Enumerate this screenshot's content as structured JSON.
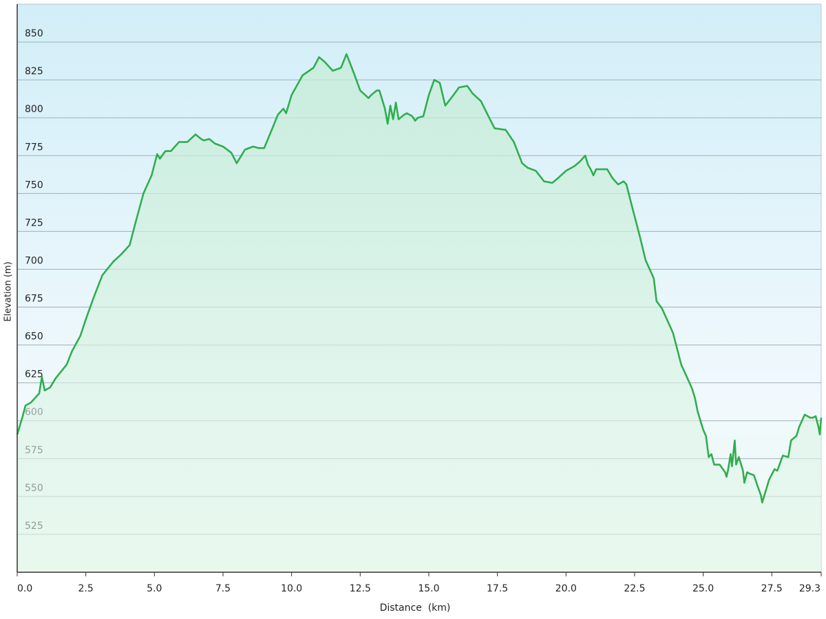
{
  "chart_data": {
    "type": "area-line",
    "x_label": "Distance  (km)",
    "y_label": "Elevation (m)",
    "color": "#2fae4e",
    "xlim": [
      0,
      29.3
    ],
    "ylim": [
      500,
      875
    ],
    "xticks": [
      {
        "value": 0,
        "label": "0.0"
      },
      2.5,
      {
        "value": 5,
        "label": "5.0"
      },
      7.5,
      {
        "value": 10,
        "label": "10.0"
      },
      12.5,
      {
        "value": 15,
        "label": "15.0"
      },
      17.5,
      {
        "value": 20,
        "label": "20.0"
      },
      22.5,
      {
        "value": 25,
        "label": "25.0"
      },
      27.5,
      29.3
    ],
    "yticks": [
      525,
      550,
      575,
      600,
      625,
      650,
      675,
      700,
      725,
      750,
      775,
      800,
      825,
      850
    ],
    "grid": true,
    "x": [
      0,
      0.2,
      0.3,
      0.5,
      0.8,
      0.9,
      1.0,
      1.2,
      1.4,
      1.8,
      2.0,
      2.3,
      2.5,
      2.8,
      3.1,
      3.5,
      3.8,
      4.1,
      4.3,
      4.6,
      4.9,
      5.1,
      5.2,
      5.4,
      5.6,
      5.9,
      6.2,
      6.5,
      6.7,
      6.8,
      7.0,
      7.2,
      7.5,
      7.8,
      8.0,
      8.3,
      8.6,
      8.8,
      9.0,
      9.3,
      9.5,
      9.7,
      9.8,
      10.0,
      10.4,
      10.8,
      11.0,
      11.2,
      11.5,
      11.8,
      12.0,
      12.3,
      12.5,
      12.8,
      12.9,
      13.1,
      13.2,
      13.4,
      13.5,
      13.6,
      13.7,
      13.8,
      13.9,
      14.1,
      14.2,
      14.4,
      14.5,
      14.6,
      14.8,
      15.0,
      15.2,
      15.4,
      15.6,
      15.9,
      16.1,
      16.4,
      16.6,
      16.9,
      17.2,
      17.4,
      17.8,
      18.1,
      18.4,
      18.6,
      18.9,
      19.2,
      19.5,
      19.7,
      20.0,
      20.3,
      20.5,
      20.7,
      20.8,
      20.9,
      21.0,
      21.1,
      21.5,
      21.7,
      21.9,
      22.1,
      22.2,
      22.4,
      22.7,
      22.9,
      23.2,
      23.3,
      23.5,
      23.9,
      24.2,
      24.5,
      24.6,
      24.7,
      24.8,
      25.0,
      25.1,
      25.2,
      25.3,
      25.4,
      25.6,
      25.8,
      25.85,
      25.9,
      26.0,
      26.05,
      26.15,
      26.2,
      26.3,
      26.45,
      26.5,
      26.6,
      26.7,
      26.85,
      27.0,
      27.1,
      27.15,
      27.3,
      27.4,
      27.6,
      27.7,
      27.9,
      28.1,
      28.2,
      28.4,
      28.5,
      28.7,
      28.9,
      29.0,
      29.1,
      29.2,
      29.25,
      29.3
    ],
    "values": [
      591,
      603,
      610,
      612,
      618,
      629,
      620,
      622,
      628,
      637,
      646,
      656,
      667,
      682,
      696,
      705,
      710,
      716,
      730,
      750,
      762,
      776,
      773,
      778,
      778,
      784,
      784,
      789,
      786,
      785,
      786,
      783,
      781,
      777,
      770,
      779,
      781,
      780,
      780,
      793,
      802,
      806,
      803,
      815,
      828,
      833,
      840,
      837,
      831,
      833,
      842,
      828,
      818,
      813,
      815,
      818,
      818,
      806,
      796,
      808,
      799,
      810,
      799,
      802,
      803,
      801,
      798,
      800,
      801,
      815,
      825,
      823,
      808,
      815,
      820,
      821,
      816,
      811,
      800,
      793,
      792,
      784,
      770,
      767,
      765,
      758,
      757,
      760,
      765,
      768,
      771,
      775,
      769,
      766,
      762,
      766,
      766,
      760,
      756,
      758,
      756,
      742,
      721,
      706,
      694,
      679,
      674,
      658,
      637,
      625,
      621,
      615,
      606,
      594,
      590,
      576,
      578,
      571,
      571,
      566,
      563,
      567,
      578,
      570,
      587,
      571,
      576,
      567,
      559,
      566,
      565,
      564,
      556,
      551,
      546,
      555,
      561,
      568,
      567,
      577,
      576,
      587,
      590,
      596,
      604,
      602,
      602,
      603,
      596,
      591,
      602
    ]
  }
}
